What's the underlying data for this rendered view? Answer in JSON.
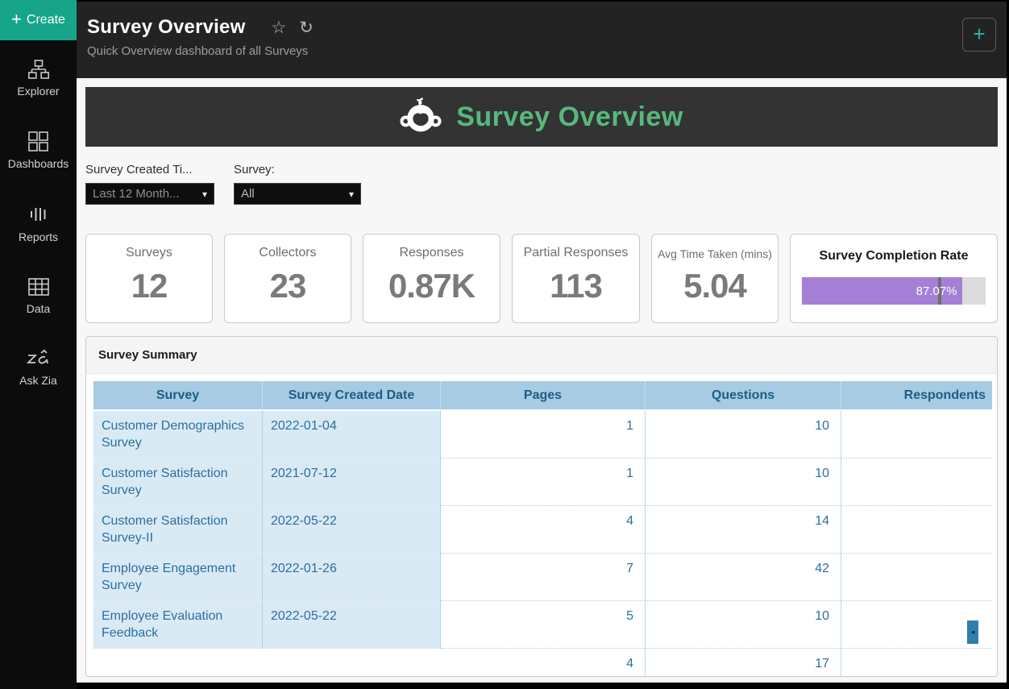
{
  "sidebar": {
    "create_label": "Create",
    "plus_glyph": "+",
    "items": [
      {
        "label": "Explorer"
      },
      {
        "label": "Dashboards"
      },
      {
        "label": "Reports"
      },
      {
        "label": "Data"
      },
      {
        "label": "Ask Zia"
      }
    ]
  },
  "header": {
    "title": "Survey Overview",
    "subtitle": "Quick Overview dashboard of all Surveys",
    "star_icon": "☆",
    "refresh_icon": "↻",
    "add_button": "+"
  },
  "banner": {
    "title": "Survey Overview"
  },
  "filters": [
    {
      "label": "Survey Created Ti...",
      "value": "Last 12 Month...",
      "caret": "▾"
    },
    {
      "label": "Survey:",
      "value": "All",
      "caret": "▾"
    }
  ],
  "kpis": [
    {
      "label": "Surveys",
      "value": "12"
    },
    {
      "label": "Collectors",
      "value": "23"
    },
    {
      "label": "Responses",
      "value": "0.87K"
    },
    {
      "label": "Partial Responses",
      "value": "113"
    },
    {
      "label": "Avg Time Taken (mins)",
      "value": "5.04"
    }
  ],
  "completion": {
    "label": "Survey Completion Rate",
    "value": "87.07%",
    "percent": 87.07,
    "marker_percent": 74,
    "fill_color": "#a57fd5",
    "track_color": "#dcdcdc"
  },
  "table": {
    "widget_title": "Survey Summary",
    "columns": [
      "Survey",
      "Survey Created Date",
      "Pages",
      "Questions",
      "Respondents"
    ],
    "rows": [
      {
        "survey": "Customer Demographics Survey",
        "created": "2022-01-04",
        "pages": "1",
        "questions": "10",
        "respondents": ""
      },
      {
        "survey": "Customer Satisfaction Survey",
        "created": "2021-07-12",
        "pages": "1",
        "questions": "10",
        "respondents": ""
      },
      {
        "survey": "Customer Satisfaction Survey-II",
        "created": "2022-05-22",
        "pages": "4",
        "questions": "14",
        "respondents": ""
      },
      {
        "survey": "Employee Engagement Survey",
        "created": "2022-01-26",
        "pages": "7",
        "questions": "42",
        "respondents": ""
      },
      {
        "survey": "Employee Evaluation Feedback",
        "created": "2022-05-22",
        "pages": "5",
        "questions": "10",
        "respondents": ""
      },
      {
        "survey": "",
        "created": "",
        "pages": "4",
        "questions": "17",
        "respondents": ""
      }
    ],
    "scroll_arrow": "◂"
  },
  "colors": {
    "accent_teal": "#16a58b",
    "banner_green": "#57b87e",
    "topbar_bg": "#232323",
    "banner_bg": "#333333",
    "table_header_bg": "#a6cbe3",
    "table_header_text": "#1d5d85",
    "table_cell_bg": "#d9eaf5",
    "table_text": "#2d6f9f",
    "progress_purple": "#a57fd5"
  }
}
